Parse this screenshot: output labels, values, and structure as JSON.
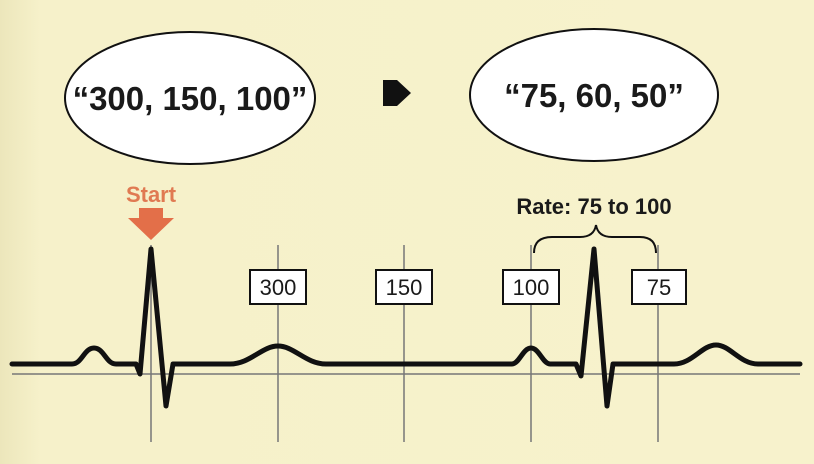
{
  "ovals": {
    "left_text": "“300, 150, 100”",
    "right_text": "“75, 60, 50”"
  },
  "arrow_icon": "right-pentagon-arrow-icon",
  "start": {
    "label": "Start",
    "color": "#e07a52"
  },
  "rate": {
    "label": "Rate: 75 to 100"
  },
  "boxes": {
    "box_300": "300",
    "box_150": "150",
    "box_100": "100",
    "box_75": "75"
  },
  "colors": {
    "background": "#f6f1c9",
    "trace": "#111111",
    "start_arrow": "#e36f49"
  }
}
